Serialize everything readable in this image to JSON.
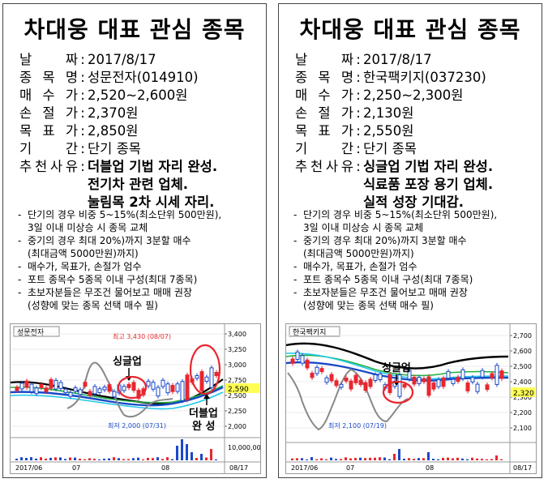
{
  "cards": [
    {
      "title": "차대웅 대표 관심 종목",
      "date_label": "날 짜",
      "date": "2017/8/17",
      "stock_label": "종목명",
      "stock": "성문전자(014910)",
      "buy_label": "매수가",
      "buy": "2,520~2,600원",
      "stop_label": "손절가",
      "stop": "2,370원",
      "target_label": "목표가",
      "target": "2,850원",
      "period_label": "기 간",
      "period": "단기 종목",
      "reason_label": "추천사유",
      "reasons": [
        "더블업 기법 자리 완성.",
        "전기차 관련 업체.",
        "눌림목 2차 시세 자리."
      ],
      "notes": [
        "단기의 경우 비중 5~15%(최소단위  500만원),",
        "3일 이내 미상승 시 종목 교체",
        "중기의 경우 최대 20%)까지 3분할 매수",
        "(최대금액  5000만원)까지)",
        "매수가, 목표가, 손절가 엄수",
        "포트 종목수 5종목 이내 구성(최대 7종목)",
        "초보자분들은 무조건 물어보고 매매 권장",
        "(성향에 맞는 종목 선택 매수 필)"
      ],
      "chart": {
        "name": "성문전자",
        "high_label": "최고 3,430 (08/07)",
        "low_label": "최저 2,000 (07/31)",
        "price_ticks": [
          "3,400",
          "3,250",
          "3,000",
          "2,750",
          "2,500",
          "2,250",
          "2,000"
        ],
        "current": "2,590",
        "vol_tick": "10,000,000",
        "x_labels": [
          "2017/06",
          "07",
          "08",
          "08/17"
        ],
        "annotation_1": "싱글업",
        "annotation_2": "더블업",
        "annotation_3": "완 성",
        "colors": {
          "up": "#e8262e",
          "down": "#1a49c8",
          "ma1": "#000000",
          "ma2": "#20b040",
          "ma3": "#1a49c8",
          "ma4": "#20c8e8",
          "highlight": "#ffff55"
        }
      }
    },
    {
      "title": "차대웅 대표 관심 종목",
      "date_label": "날 짜",
      "date": "2017/8/17",
      "stock_label": "종목명",
      "stock": "한국팩키지(037230)",
      "buy_label": "매수가",
      "buy": "2,250~2,300원",
      "stop_label": "손절가",
      "stop": "2,130원",
      "target_label": "목표가",
      "target": "2,550원",
      "period_label": "기 간",
      "period": "단기 종목",
      "reason_label": "추천사유",
      "reasons": [
        "싱글업 기법 자리 완성.",
        "식료품 포장 용기 업체.",
        "실적 성장 기대감."
      ],
      "notes": [
        "단기의 경우 비중 5~15%(최소단위  500만원),",
        "3일 이내 미상승 시 종목 교체",
        "중기의 경우 최대 20%)까지 3분할 매수",
        "(최대금액  5000만원)까지)",
        "매수가, 목표가, 손절가 엄수",
        "포트 종목수 5종목 이내 구성(최대 7종목)",
        "초보자분들은 무조건 물어보고 매매 권장",
        "(성향에 맞는 종목 선택 매수 필)"
      ],
      "chart": {
        "name": "한국팩키지",
        "low_label": "최저 2,100 (07/19)",
        "price_ticks": [
          "2,700",
          "2,600",
          "2,500",
          "2,400",
          "2,300",
          "2,200",
          "2,100"
        ],
        "current": "2,320",
        "x_labels": [
          "2017/06",
          "07",
          "08",
          "08/17"
        ],
        "annotation_1": "싱글업",
        "colors": {
          "up": "#e8262e",
          "down": "#1a49c8",
          "ma1": "#000000",
          "ma2": "#20b040",
          "ma3": "#1a49c8",
          "ma4": "#20c8e8",
          "highlight": "#ffff55"
        }
      }
    }
  ]
}
